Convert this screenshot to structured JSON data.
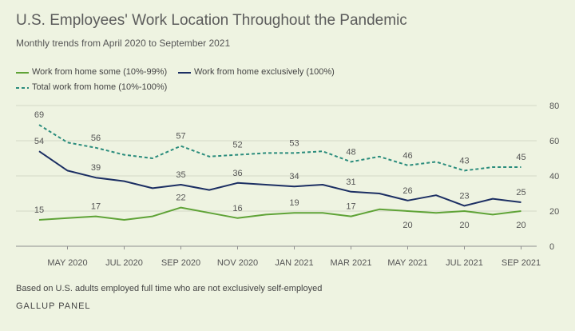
{
  "title": "U.S. Employees' Work Location Throughout the Pandemic",
  "subtitle": "Monthly trends from April 2020 to September 2021",
  "legend": [
    {
      "label": "Work from home some (10%-99%)",
      "color": "#5fa337",
      "style": "solid"
    },
    {
      "label": "Work from home exclusively (100%)",
      "color": "#1c2f63",
      "style": "solid"
    },
    {
      "label": "Total work from home (10%-100%)",
      "color": "#2a8c7c",
      "style": "dashed"
    }
  ],
  "footnote": "Based on U.S. adults employed full time who are not exclusively self-employed",
  "source": "GALLUP PANEL",
  "chart_data": {
    "type": "line",
    "x": [
      "2020-04",
      "2020-05",
      "2020-06",
      "2020-07",
      "2020-08",
      "2020-09",
      "2020-10",
      "2020-11",
      "2020-12",
      "2021-01",
      "2021-02",
      "2021-03",
      "2021-04",
      "2021-05",
      "2021-06",
      "2021-07",
      "2021-08",
      "2021-09"
    ],
    "x_tick_labels": [
      "MAY 2020",
      "JUL 2020",
      "SEP 2020",
      "NOV 2020",
      "JAN 2021",
      "MAR 2021",
      "MAY 2021",
      "JUL 2021",
      "SEP 2021"
    ],
    "x_tick_index": [
      1,
      3,
      5,
      7,
      9,
      11,
      13,
      15,
      17
    ],
    "y_ticks": [
      0,
      20,
      40,
      60,
      80
    ],
    "ylim": [
      0,
      80
    ],
    "series": [
      {
        "name": "Work from home some (10%-99%)",
        "color": "#5fa337",
        "dash": false,
        "values": [
          15,
          16,
          17,
          15,
          17,
          22,
          19,
          16,
          18,
          19,
          19,
          17,
          21,
          20,
          19,
          20,
          18,
          20
        ],
        "labels": [
          {
            "i": 0,
            "text": "15",
            "pos": "above"
          },
          {
            "i": 2,
            "text": "17",
            "pos": "above"
          },
          {
            "i": 5,
            "text": "22",
            "pos": "above"
          },
          {
            "i": 7,
            "text": "16",
            "pos": "above"
          },
          {
            "i": 9,
            "text": "19",
            "pos": "above"
          },
          {
            "i": 11,
            "text": "17",
            "pos": "above"
          },
          {
            "i": 13,
            "text": "20",
            "pos": "below"
          },
          {
            "i": 15,
            "text": "20",
            "pos": "below"
          },
          {
            "i": 17,
            "text": "20",
            "pos": "below"
          }
        ]
      },
      {
        "name": "Work from home exclusively (100%)",
        "color": "#1c2f63",
        "dash": false,
        "values": [
          54,
          43,
          39,
          37,
          33,
          35,
          32,
          36,
          35,
          34,
          35,
          31,
          30,
          26,
          29,
          23,
          27,
          25
        ],
        "labels": [
          {
            "i": 0,
            "text": "54",
            "pos": "above"
          },
          {
            "i": 2,
            "text": "39",
            "pos": "above"
          },
          {
            "i": 5,
            "text": "35",
            "pos": "above"
          },
          {
            "i": 7,
            "text": "36",
            "pos": "above"
          },
          {
            "i": 9,
            "text": "34",
            "pos": "above"
          },
          {
            "i": 11,
            "text": "31",
            "pos": "above"
          },
          {
            "i": 13,
            "text": "26",
            "pos": "above"
          },
          {
            "i": 15,
            "text": "23",
            "pos": "above"
          },
          {
            "i": 17,
            "text": "25",
            "pos": "above"
          }
        ]
      },
      {
        "name": "Total work from home (10%-100%)",
        "color": "#2a8c7c",
        "dash": true,
        "values": [
          69,
          59,
          56,
          52,
          50,
          57,
          51,
          52,
          53,
          53,
          54,
          48,
          51,
          46,
          48,
          43,
          45,
          45
        ],
        "labels": [
          {
            "i": 0,
            "text": "69",
            "pos": "above"
          },
          {
            "i": 2,
            "text": "56",
            "pos": "above"
          },
          {
            "i": 5,
            "text": "57",
            "pos": "above"
          },
          {
            "i": 7,
            "text": "52",
            "pos": "above"
          },
          {
            "i": 9,
            "text": "53",
            "pos": "above"
          },
          {
            "i": 11,
            "text": "48",
            "pos": "above"
          },
          {
            "i": 13,
            "text": "46",
            "pos": "above"
          },
          {
            "i": 15,
            "text": "43",
            "pos": "above"
          },
          {
            "i": 17,
            "text": "45",
            "pos": "above"
          }
        ]
      }
    ]
  }
}
